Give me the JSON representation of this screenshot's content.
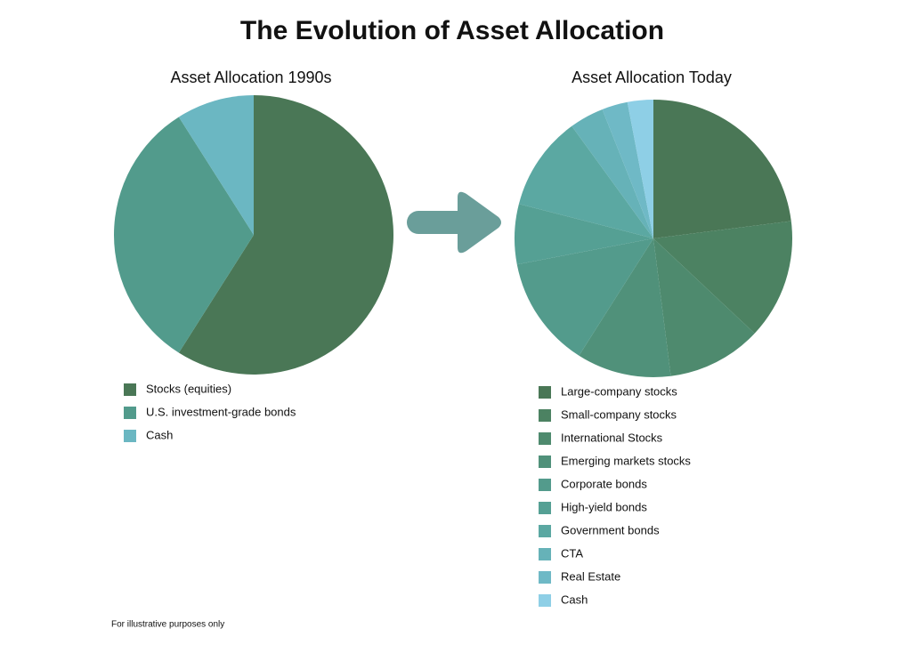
{
  "title": "The Evolution of Asset Allocation",
  "footnote": "For illustrative purposes only",
  "chart_data": [
    {
      "type": "pie",
      "title": "Asset Allocation 1990s",
      "categories": [
        "Stocks (equities)",
        "U.S. investment-grade bonds",
        "Cash"
      ],
      "values": [
        59,
        32,
        9
      ],
      "colors": [
        "#4a7756",
        "#529b8c",
        "#6bb7c2"
      ]
    },
    {
      "type": "pie",
      "title": "Asset Allocation Today",
      "categories": [
        "Large-company stocks",
        "Small-company stocks",
        "International Stocks",
        "Emerging markets stocks",
        "Corporate bonds",
        "High-yield bonds",
        "Government bonds",
        "CTA",
        "Real Estate",
        "Cash"
      ],
      "values": [
        23,
        14,
        11,
        11,
        13,
        7,
        11,
        4,
        3,
        3
      ],
      "colors": [
        "#4a7756",
        "#4c8262",
        "#4e8a6e",
        "#50917a",
        "#539b8c",
        "#55a094",
        "#5ba8a2",
        "#66b2b8",
        "#6fb9c6",
        "#8ecfe6"
      ]
    }
  ]
}
